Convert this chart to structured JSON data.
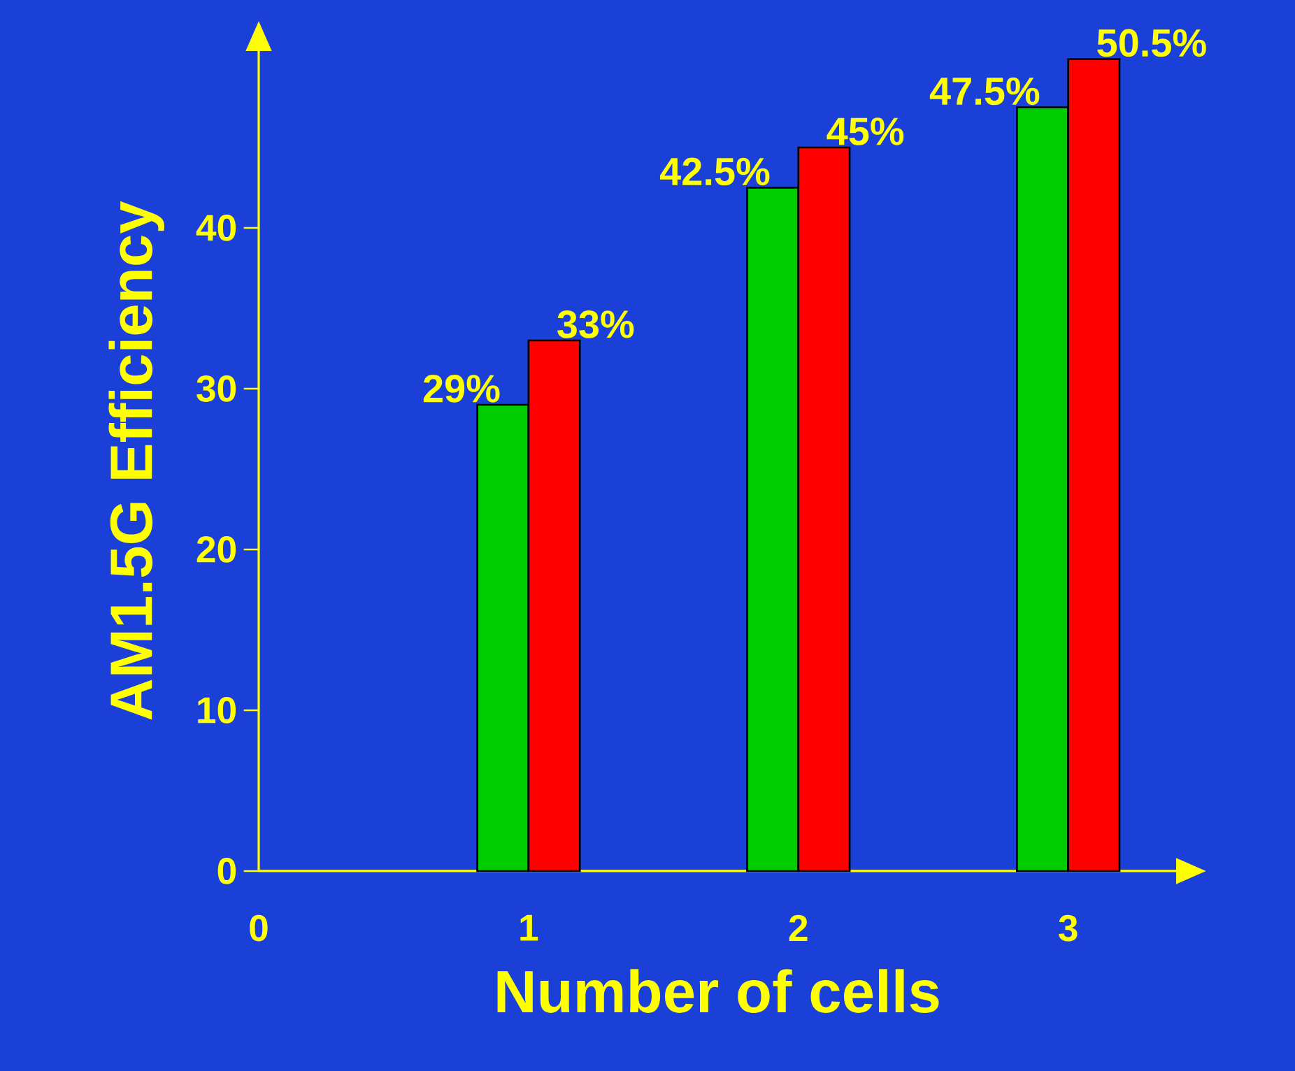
{
  "chart_data": {
    "type": "bar",
    "xlabel": "Number of cells",
    "ylabel": "AM1.5G Efficiency",
    "x": [
      1,
      2,
      3
    ],
    "xlim": [
      0,
      3.4
    ],
    "xticks": [
      0,
      1,
      2,
      3
    ],
    "ylim": [
      0,
      51
    ],
    "yticks": [
      0,
      10,
      20,
      30,
      40
    ],
    "series": [
      {
        "color": "#00cc00",
        "values": [
          29,
          42.5,
          47.5
        ],
        "value_labels": [
          "29%",
          "42.5%",
          "47.5%"
        ]
      },
      {
        "color": "#ff0000",
        "values": [
          33,
          45,
          50.5
        ],
        "value_labels": [
          "33%",
          "45%",
          "50.5%"
        ]
      }
    ]
  }
}
